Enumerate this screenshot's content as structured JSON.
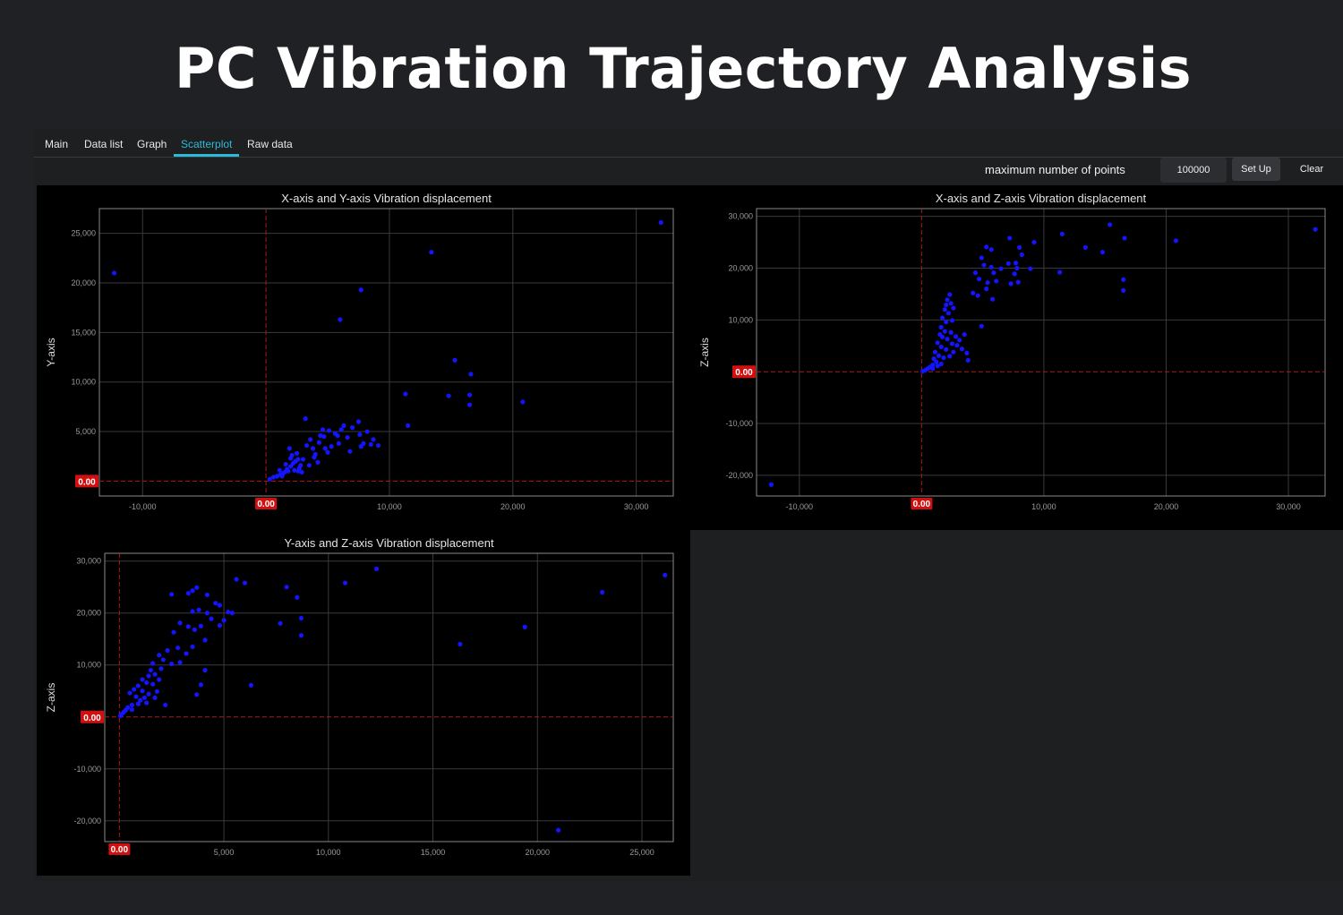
{
  "page": {
    "title": "PC Vibration Trajectory Analysis"
  },
  "tabs": [
    {
      "label": "Main"
    },
    {
      "label": "Data list"
    },
    {
      "label": "Graph"
    },
    {
      "label": "Scatterplot",
      "active": true
    },
    {
      "label": "Raw data"
    }
  ],
  "toolbar": {
    "max_points_label": "maximum number of points",
    "max_points_value": "100000",
    "setup_label": "Set Up",
    "clear_label": "Clear"
  },
  "colors": {
    "accent": "#2bbbd8",
    "point": "#1414ff",
    "zero_line": "#b01818",
    "zero_label_bg": "#d01010"
  },
  "chart_data": [
    {
      "type": "scatter",
      "title": "X-axis and Y-axis Vibration displacement",
      "xlabel": "",
      "ylabel": "Y-axis",
      "xlim": [
        -13500,
        33000
      ],
      "ylim": [
        -1500,
        27500
      ],
      "xticks": [
        -10000,
        0,
        10000,
        20000,
        30000
      ],
      "xtick_labels": [
        "-10,000",
        "0.00",
        "10,000",
        "20,000",
        "30,000"
      ],
      "yticks": [
        0,
        5000,
        10000,
        15000,
        20000,
        25000
      ],
      "ytick_labels": [
        "0.00",
        "5,000",
        "10,000",
        "15,000",
        "20,000",
        "25,000"
      ],
      "grid": true,
      "zero_lines": true,
      "points": [
        [
          32000,
          26100
        ],
        [
          -12300,
          21000
        ],
        [
          13400,
          23100
        ],
        [
          7700,
          19300
        ],
        [
          6000,
          16300
        ],
        [
          15300,
          12200
        ],
        [
          16600,
          10800
        ],
        [
          11300,
          8800
        ],
        [
          14800,
          8600
        ],
        [
          16500,
          8700
        ],
        [
          16500,
          7700
        ],
        [
          20800,
          8000
        ],
        [
          11500,
          5600
        ],
        [
          300,
          200
        ],
        [
          600,
          400
        ],
        [
          900,
          500
        ],
        [
          1200,
          700
        ],
        [
          1500,
          900
        ],
        [
          1700,
          1200
        ],
        [
          2000,
          1500
        ],
        [
          2200,
          1800
        ],
        [
          1800,
          1000
        ],
        [
          1400,
          800
        ],
        [
          2400,
          2000
        ],
        [
          2100,
          2600
        ],
        [
          1900,
          3300
        ],
        [
          2600,
          2200
        ],
        [
          2800,
          1600
        ],
        [
          2300,
          1100
        ],
        [
          2500,
          2800
        ],
        [
          1600,
          1700
        ],
        [
          1100,
          1100
        ],
        [
          2000,
          2300
        ],
        [
          2700,
          1300
        ],
        [
          3000,
          2200
        ],
        [
          3200,
          6300
        ],
        [
          3600,
          4200
        ],
        [
          3800,
          3300
        ],
        [
          4000,
          2700
        ],
        [
          4300,
          3900
        ],
        [
          4600,
          5200
        ],
        [
          4700,
          4500
        ],
        [
          5100,
          5100
        ],
        [
          5300,
          3500
        ],
        [
          5600,
          4800
        ],
        [
          5900,
          3800
        ],
        [
          6300,
          5600
        ],
        [
          6600,
          4400
        ],
        [
          7000,
          5400
        ],
        [
          7500,
          6000
        ],
        [
          7600,
          4700
        ],
        [
          7900,
          3800
        ],
        [
          8200,
          5000
        ],
        [
          8700,
          4200
        ],
        [
          9100,
          3600
        ],
        [
          6800,
          3000
        ],
        [
          5000,
          2900
        ],
        [
          4200,
          1900
        ],
        [
          3500,
          1600
        ],
        [
          2900,
          900
        ],
        [
          4400,
          4600
        ],
        [
          3300,
          3600
        ],
        [
          5800,
          4600
        ],
        [
          6100,
          5200
        ],
        [
          7700,
          3500
        ],
        [
          8500,
          3700
        ],
        [
          3900,
          2400
        ],
        [
          4800,
          3300
        ],
        [
          2600,
          1000
        ],
        [
          1300,
          500
        ]
      ]
    },
    {
      "type": "scatter",
      "title": "X-axis and Z-axis Vibration displacement",
      "xlabel": "",
      "ylabel": "Z-axis",
      "xlim": [
        -13500,
        33000
      ],
      "ylim": [
        -24000,
        31500
      ],
      "xticks": [
        -10000,
        0,
        10000,
        20000,
        30000
      ],
      "xtick_labels": [
        "-10,000",
        "0.00",
        "10,000",
        "20,000",
        "30,000"
      ],
      "yticks": [
        -20000,
        -10000,
        0,
        10000,
        20000,
        30000
      ],
      "ytick_labels": [
        "-20,000",
        "-10,000",
        "0.00",
        "10,000",
        "20,000",
        "30,000"
      ],
      "grid": true,
      "zero_lines": true,
      "points": [
        [
          -12300,
          -21800
        ],
        [
          32200,
          27500
        ],
        [
          15400,
          28400
        ],
        [
          11500,
          26600
        ],
        [
          16600,
          25800
        ],
        [
          20800,
          25300
        ],
        [
          13400,
          24000
        ],
        [
          14800,
          23100
        ],
        [
          11300,
          19200
        ],
        [
          16500,
          17800
        ],
        [
          16500,
          15700
        ],
        [
          7200,
          25800
        ],
        [
          9200,
          25000
        ],
        [
          8000,
          24000
        ],
        [
          8200,
          22600
        ],
        [
          5300,
          24100
        ],
        [
          5700,
          23600
        ],
        [
          4900,
          22000
        ],
        [
          5100,
          20600
        ],
        [
          5700,
          20200
        ],
        [
          5900,
          19100
        ],
        [
          6500,
          19900
        ],
        [
          7100,
          20900
        ],
        [
          7700,
          21000
        ],
        [
          7800,
          20000
        ],
        [
          7600,
          18900
        ],
        [
          8900,
          19900
        ],
        [
          4400,
          19100
        ],
        [
          4700,
          17900
        ],
        [
          5400,
          17200
        ],
        [
          6100,
          17500
        ],
        [
          7300,
          17000
        ],
        [
          7900,
          17300
        ],
        [
          5300,
          16000
        ],
        [
          4200,
          15200
        ],
        [
          4600,
          14700
        ],
        [
          5800,
          14000
        ],
        [
          2300,
          14900
        ],
        [
          2100,
          13900
        ],
        [
          2400,
          13200
        ],
        [
          2000,
          12900
        ],
        [
          1900,
          12000
        ],
        [
          2600,
          12300
        ],
        [
          2200,
          11300
        ],
        [
          1700,
          10400
        ],
        [
          2000,
          9600
        ],
        [
          2500,
          9900
        ],
        [
          1600,
          8600
        ],
        [
          1900,
          7800
        ],
        [
          2400,
          7600
        ],
        [
          1500,
          7200
        ],
        [
          1700,
          6700
        ],
        [
          2100,
          6300
        ],
        [
          2800,
          6800
        ],
        [
          3100,
          6100
        ],
        [
          3500,
          7200
        ],
        [
          2500,
          5400
        ],
        [
          1300,
          5600
        ],
        [
          1600,
          4800
        ],
        [
          2000,
          4300
        ],
        [
          2600,
          3800
        ],
        [
          3300,
          4400
        ],
        [
          1100,
          3800
        ],
        [
          1400,
          3100
        ],
        [
          1800,
          2700
        ],
        [
          2300,
          3000
        ],
        [
          3700,
          3600
        ],
        [
          1000,
          2500
        ],
        [
          1200,
          1900
        ],
        [
          1600,
          1500
        ],
        [
          900,
          1300
        ],
        [
          700,
          900
        ],
        [
          500,
          600
        ],
        [
          300,
          300
        ],
        [
          100,
          100
        ],
        [
          4900,
          8800
        ],
        [
          3800,
          2200
        ],
        [
          2900,
          5100
        ],
        [
          1300,
          1100
        ],
        [
          900,
          600
        ]
      ]
    },
    {
      "type": "scatter",
      "title": "Y-axis and Z-axis Vibration displacement",
      "xlabel": "",
      "ylabel": "Z-axis",
      "xlim": [
        -700,
        26500
      ],
      "ylim": [
        -24000,
        31500
      ],
      "xticks": [
        0,
        5000,
        10000,
        15000,
        20000,
        25000
      ],
      "xtick_labels": [
        "0.00",
        "5,000",
        "10,000",
        "15,000",
        "20,000",
        "25,000"
      ],
      "yticks": [
        -20000,
        -10000,
        0,
        10000,
        20000,
        30000
      ],
      "ytick_labels": [
        "-20,000",
        "-10,000",
        "0.00",
        "10,000",
        "20,000",
        "30,000"
      ],
      "grid": true,
      "zero_lines": true,
      "points": [
        [
          26100,
          27300
        ],
        [
          12300,
          28500
        ],
        [
          23100,
          24000
        ],
        [
          10800,
          25800
        ],
        [
          21000,
          -21800
        ],
        [
          19400,
          17300
        ],
        [
          16300,
          14000
        ],
        [
          8000,
          25000
        ],
        [
          8500,
          23000
        ],
        [
          8700,
          19000
        ],
        [
          8700,
          15700
        ],
        [
          7700,
          18000
        ],
        [
          5600,
          26500
        ],
        [
          6000,
          25800
        ],
        [
          6300,
          6100
        ],
        [
          2500,
          23600
        ],
        [
          3300,
          23800
        ],
        [
          3500,
          24300
        ],
        [
          3700,
          24900
        ],
        [
          4200,
          23500
        ],
        [
          4600,
          21900
        ],
        [
          4800,
          21500
        ],
        [
          4200,
          20000
        ],
        [
          3500,
          20300
        ],
        [
          3800,
          20600
        ],
        [
          5200,
          20200
        ],
        [
          5000,
          18600
        ],
        [
          4400,
          18900
        ],
        [
          3900,
          17500
        ],
        [
          3300,
          17400
        ],
        [
          2900,
          18100
        ],
        [
          2600,
          16300
        ],
        [
          3600,
          16800
        ],
        [
          4800,
          17600
        ],
        [
          5400,
          20000
        ],
        [
          4100,
          14800
        ],
        [
          3500,
          13500
        ],
        [
          3200,
          12200
        ],
        [
          2900,
          10500
        ],
        [
          2300,
          12800
        ],
        [
          2100,
          11000
        ],
        [
          1900,
          11900
        ],
        [
          1600,
          10300
        ],
        [
          2000,
          9300
        ],
        [
          1500,
          9000
        ],
        [
          1700,
          8200
        ],
        [
          1400,
          7900
        ],
        [
          1100,
          7200
        ],
        [
          1300,
          6600
        ],
        [
          1600,
          6300
        ],
        [
          1900,
          7200
        ],
        [
          900,
          6000
        ],
        [
          700,
          5300
        ],
        [
          1100,
          5000
        ],
        [
          1400,
          4400
        ],
        [
          1700,
          3700
        ],
        [
          500,
          4600
        ],
        [
          800,
          3900
        ],
        [
          1000,
          3200
        ],
        [
          1300,
          2700
        ],
        [
          2200,
          2300
        ],
        [
          600,
          2300
        ],
        [
          400,
          1800
        ],
        [
          300,
          1300
        ],
        [
          200,
          900
        ],
        [
          100,
          500
        ],
        [
          50,
          200
        ],
        [
          3700,
          4300
        ],
        [
          4100,
          9000
        ],
        [
          3900,
          6200
        ],
        [
          2500,
          10200
        ],
        [
          2800,
          13300
        ],
        [
          1200,
          3700
        ],
        [
          1800,
          4900
        ],
        [
          900,
          2500
        ],
        [
          600,
          1400
        ]
      ]
    }
  ]
}
